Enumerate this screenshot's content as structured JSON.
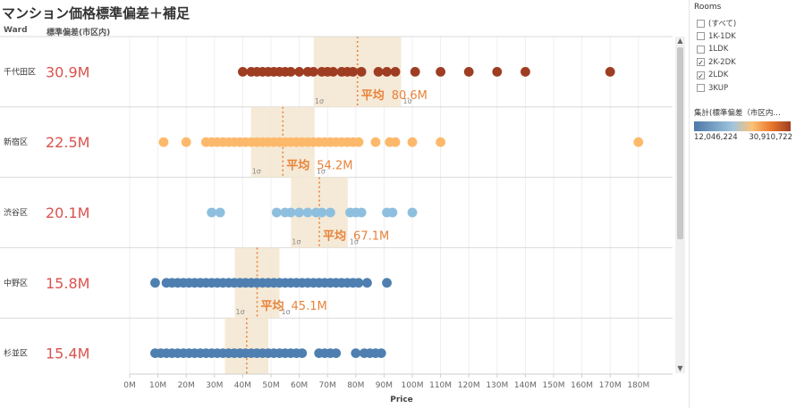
{
  "title": "マンション価格標準偏差＋補足",
  "headers": {
    "ward": "Ward",
    "std": "標準偏差(市区内)"
  },
  "filter": {
    "title": "Rooms",
    "items": [
      {
        "label": "(すべて)",
        "checked": false
      },
      {
        "label": "1K-1DK",
        "checked": false
      },
      {
        "label": "1LDK",
        "checked": false
      },
      {
        "label": "2K-2DK",
        "checked": true
      },
      {
        "label": "2LDK",
        "checked": true
      },
      {
        "label": "3KUP",
        "checked": false
      }
    ]
  },
  "legend": {
    "title": "集計(標準偏差（市区内…",
    "min_label": "12,046,224",
    "max_label": "30,910,722"
  },
  "chart_data": {
    "type": "scatter",
    "xlabel": "Price",
    "xlim": [
      0,
      190
    ],
    "x_ticks": [
      "0M",
      "10M",
      "20M",
      "30M",
      "40M",
      "50M",
      "60M",
      "70M",
      "80M",
      "90M",
      "100M",
      "110M",
      "120M",
      "130M",
      "140M",
      "150M",
      "160M",
      "170M",
      "180M"
    ],
    "sigma_label": "1σ",
    "mean_prefix": "平均",
    "rows": [
      {
        "ward": "千代田区",
        "std_label": "30.9M",
        "mean": 80.6,
        "mean_label": "80.6M",
        "color": "#9e3d22",
        "points": [
          40,
          43,
          45,
          47,
          49,
          51,
          53,
          55,
          57,
          60,
          63,
          65,
          68,
          70,
          72,
          75,
          77,
          79,
          82,
          88,
          91,
          94,
          101,
          110,
          120,
          130,
          140,
          170
        ]
      },
      {
        "ward": "新宿区",
        "std_label": "22.5M",
        "mean": 54.2,
        "mean_label": "54.2M",
        "color": "#fdb96b",
        "points": [
          12,
          20,
          27,
          29,
          31,
          33,
          35,
          37,
          39,
          41,
          43,
          45,
          47,
          49,
          51,
          53,
          55,
          57,
          59,
          61,
          63,
          65,
          67,
          69,
          71,
          73,
          75,
          77,
          79,
          81,
          87,
          92,
          94,
          100,
          110,
          180
        ]
      },
      {
        "ward": "渋谷区",
        "std_label": "20.1M",
        "mean": 67.1,
        "mean_label": "67.1M",
        "color": "#8fbfdf",
        "points": [
          29,
          32,
          52,
          55,
          57,
          60,
          63,
          66,
          68,
          71,
          78,
          80,
          82,
          91,
          93,
          100
        ]
      },
      {
        "ward": "中野区",
        "std_label": "15.8M",
        "mean": 45.1,
        "mean_label": "45.1M",
        "color": "#4e7fb0",
        "points": [
          9,
          13,
          15,
          17,
          19,
          21,
          23,
          25,
          27,
          29,
          31,
          33,
          35,
          37,
          39,
          41,
          43,
          45,
          47,
          49,
          51,
          53,
          55,
          57,
          59,
          61,
          63,
          65,
          67,
          69,
          71,
          73,
          75,
          77,
          79,
          81,
          84,
          91
        ]
      },
      {
        "ward": "杉並区",
        "std_label": "15.4M",
        "mean": 41.4,
        "mean_label": "",
        "color": "#4e7fb0",
        "points": [
          9,
          11,
          13,
          15,
          17,
          19,
          21,
          23,
          25,
          27,
          29,
          31,
          33,
          35,
          37,
          39,
          41,
          43,
          45,
          47,
          49,
          51,
          53,
          55,
          57,
          59,
          61,
          67,
          69,
          71,
          73,
          80,
          83,
          85,
          87,
          89
        ]
      }
    ]
  }
}
